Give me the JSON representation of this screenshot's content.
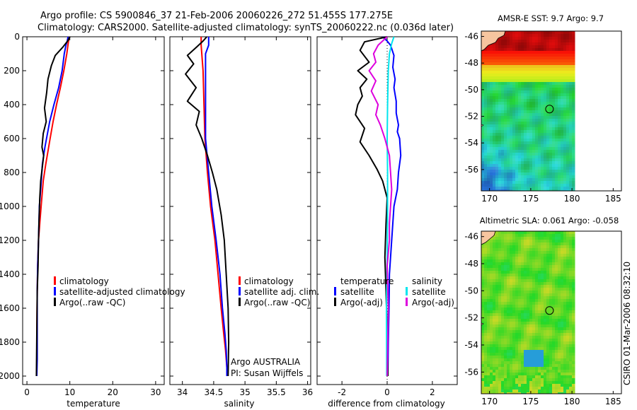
{
  "title": {
    "line1": "Argo profile: CS 5900846_37 21-Feb-2006 20060226_272 51.455S 177.275E",
    "line2": "Climatology: CARS2000. Satellite-adjusted climatology: synTS_20060222.nc (0.036d later)"
  },
  "credit": "CSIRO 01-Mar-2006 08:32:10",
  "colors": {
    "climatology": "#ff0000",
    "satellite": "#0000ff",
    "argo": "#000000",
    "temp_sat": "#0000ff",
    "sal_sat": "#00e5ee",
    "sal_argo": "#dd00dd",
    "land": "#f7c59f"
  },
  "chart_data": [
    {
      "id": "temperature",
      "type": "line",
      "title": "",
      "xlabel": "temperature",
      "ylabel": "",
      "xlim": [
        -1,
        32
      ],
      "ylim": [
        2050,
        0
      ],
      "y_reversed": true,
      "xticks": [
        0,
        10,
        20,
        30
      ],
      "yticks": [
        0,
        200,
        400,
        600,
        800,
        1000,
        1200,
        1400,
        1600,
        1800,
        2000
      ],
      "legend": [
        "climatology",
        "satellite-adjusted climatology",
        "Argo(..raw -QC)"
      ],
      "series": [
        {
          "name": "climatology",
          "color": "#ff0000",
          "x": [
            9.8,
            9.7,
            9.3,
            8.6,
            7.8,
            6.9,
            6.1,
            5.4,
            4.4,
            3.8,
            3.3,
            3.0,
            2.7,
            2.5,
            2.4,
            2.3,
            2.3
          ],
          "y": [
            0,
            25,
            100,
            200,
            300,
            400,
            500,
            600,
            750,
            850,
            1000,
            1100,
            1200,
            1350,
            1500,
            1750,
            2000
          ]
        },
        {
          "name": "satellite-adjusted climatology",
          "color": "#0000ff",
          "x": [
            9.6,
            9.4,
            9.1,
            8.7,
            8.2,
            7.4,
            6.3,
            5.3,
            4.2,
            3.6,
            3.2,
            2.9,
            2.7,
            2.5,
            2.4,
            2.4,
            2.4,
            2.3
          ],
          "y": [
            0,
            25,
            50,
            100,
            200,
            300,
            400,
            500,
            650,
            750,
            900,
            1000,
            1200,
            1350,
            1500,
            1750,
            1900,
            2000
          ]
        },
        {
          "name": "Argo(..raw -QC)",
          "color": "#000000",
          "x": [
            10.0,
            9.5,
            8.4,
            6.6,
            5.7,
            4.9,
            4.6,
            4.1,
            4.5,
            3.8,
            3.5,
            3.9,
            3.2,
            3.0,
            2.8,
            2.7,
            2.6,
            2.4,
            2.3,
            2.2
          ],
          "y": [
            0,
            25,
            60,
            110,
            170,
            250,
            330,
            420,
            500,
            570,
            650,
            700,
            850,
            950,
            1100,
            1200,
            1350,
            1500,
            1750,
            2000
          ]
        }
      ]
    },
    {
      "id": "salinity",
      "type": "line",
      "title": "",
      "xlabel": "salinity",
      "ylabel": "",
      "xlim": [
        33.8,
        36.05
      ],
      "ylim": [
        2050,
        0
      ],
      "y_reversed": true,
      "xticks": [
        34,
        34.5,
        35,
        35.5,
        36
      ],
      "legend": [
        "climatology",
        "satellite adj. clim.",
        "Argo(..raw -QC)"
      ],
      "annotation": [
        "Argo AUSTRALIA",
        "PI: Susan Wijffels"
      ],
      "series": [
        {
          "name": "climatology",
          "color": "#ff0000",
          "x": [
            34.3,
            34.3,
            34.33,
            34.36,
            34.4,
            34.45,
            34.52,
            34.57,
            34.62,
            34.66,
            34.69,
            34.71,
            34.72
          ],
          "y": [
            0,
            50,
            200,
            600,
            800,
            1000,
            1200,
            1400,
            1600,
            1750,
            1850,
            1950,
            2000
          ]
        },
        {
          "name": "satellite adj. clim.",
          "color": "#0000ff",
          "x": [
            34.42,
            34.42,
            34.37,
            34.37,
            34.42,
            34.47,
            34.54,
            34.6,
            34.64,
            34.68,
            34.7,
            34.71,
            34.71
          ],
          "y": [
            0,
            50,
            100,
            600,
            800,
            1000,
            1200,
            1400,
            1600,
            1750,
            1850,
            1950,
            2000
          ]
        },
        {
          "name": "Argo(..raw -QC)",
          "color": "#000000",
          "x": [
            34.39,
            34.33,
            34.23,
            34.08,
            34.18,
            34.05,
            34.22,
            34.08,
            34.27,
            34.22,
            34.31,
            34.4,
            34.48,
            34.55,
            34.62,
            34.67,
            34.7,
            34.73,
            34.74,
            34.73
          ],
          "y": [
            0,
            25,
            60,
            110,
            160,
            220,
            300,
            380,
            440,
            520,
            600,
            700,
            800,
            900,
            1050,
            1200,
            1400,
            1600,
            1800,
            2000
          ]
        }
      ]
    },
    {
      "id": "difference",
      "type": "line",
      "title": "",
      "xlabel": "difference from climatology",
      "ylabel": "",
      "xlim": [
        -3.1,
        3.1
      ],
      "ylim": [
        2050,
        0
      ],
      "y_reversed": true,
      "xticks": [
        -2,
        0,
        2
      ],
      "legend": {
        "headers": [
          "temperature",
          "salinity"
        ],
        "left": [
          "satellite",
          "Argo(-adj)"
        ],
        "right": [
          "satellite",
          "Argo(-adj)"
        ]
      },
      "series": [
        {
          "name": "temperature satellite",
          "color": "#0000ff",
          "x": [
            -0.2,
            0.0,
            0.15,
            0.3,
            0.25,
            0.35,
            0.3,
            0.4,
            0.4,
            0.5,
            0.45,
            0.55,
            0.6,
            0.5,
            0.45,
            0.3,
            0.2,
            0.1,
            0.08,
            0.05,
            0.03
          ],
          "y": [
            0,
            25,
            50,
            110,
            180,
            250,
            300,
            380,
            450,
            520,
            560,
            600,
            700,
            800,
            900,
            1000,
            1200,
            1400,
            1600,
            1800,
            2000
          ]
        },
        {
          "name": "temperature Argo(-adj)",
          "color": "#000000",
          "x": [
            0.0,
            -1.0,
            -1.2,
            -0.8,
            -1.3,
            -0.9,
            -1.2,
            -1.1,
            -1.3,
            -1.4,
            -1.0,
            -1.2,
            -0.8,
            -0.45,
            -0.2,
            0.0,
            -0.05,
            -0.1,
            -0.05,
            0.0,
            0.03
          ],
          "y": [
            0,
            30,
            80,
            150,
            200,
            250,
            300,
            350,
            400,
            460,
            540,
            620,
            700,
            780,
            850,
            950,
            1100,
            1300,
            1500,
            1750,
            2000
          ]
        },
        {
          "name": "salinity satellite",
          "color": "#00e5ee",
          "x": [
            0.3,
            0.2,
            0.1,
            0.05,
            0.02,
            0.0,
            0.02,
            0.02,
            0.0,
            -0.03,
            -0.02
          ],
          "y": [
            0,
            40,
            100,
            200,
            400,
            600,
            800,
            1000,
            1300,
            1600,
            2000
          ]
        },
        {
          "name": "salinity Argo(-adj)",
          "color": "#dd00dd",
          "x": [
            0.0,
            -0.4,
            -0.6,
            -0.5,
            -0.8,
            -0.5,
            -0.7,
            -0.4,
            -0.5,
            -0.3,
            -0.1,
            0.1,
            0.2,
            0.1,
            0.1,
            0.0,
            0.05,
            0.0
          ],
          "y": [
            0,
            50,
            100,
            150,
            200,
            260,
            320,
            400,
            460,
            520,
            600,
            700,
            900,
            1100,
            1200,
            1350,
            1600,
            2000
          ]
        }
      ]
    },
    {
      "id": "sst_map",
      "type": "heatmap",
      "title": "AMSR-E SST: 9.7 Argo: 9.7",
      "xlim": [
        169,
        186
      ],
      "ylim": [
        -57.6,
        -45.6
      ],
      "xticks": [
        170,
        175,
        180,
        185
      ],
      "yticks": [
        -46,
        -48,
        -50,
        -52,
        -54,
        -56
      ],
      "float_position": {
        "lon": 177.275,
        "lat": -51.455
      },
      "data_lon_max": 180
    },
    {
      "id": "sla_map",
      "type": "heatmap",
      "title": "Altimetric SLA: 0.061 Argo: -0.058",
      "xlim": [
        169,
        186
      ],
      "ylim": [
        -57.6,
        -45.6
      ],
      "xticks": [
        170,
        175,
        180,
        185
      ],
      "yticks": [
        -46,
        -48,
        -50,
        -52,
        -54,
        -56
      ],
      "float_position": {
        "lon": 177.275,
        "lat": -51.455
      },
      "data_lon_max": 180
    }
  ]
}
